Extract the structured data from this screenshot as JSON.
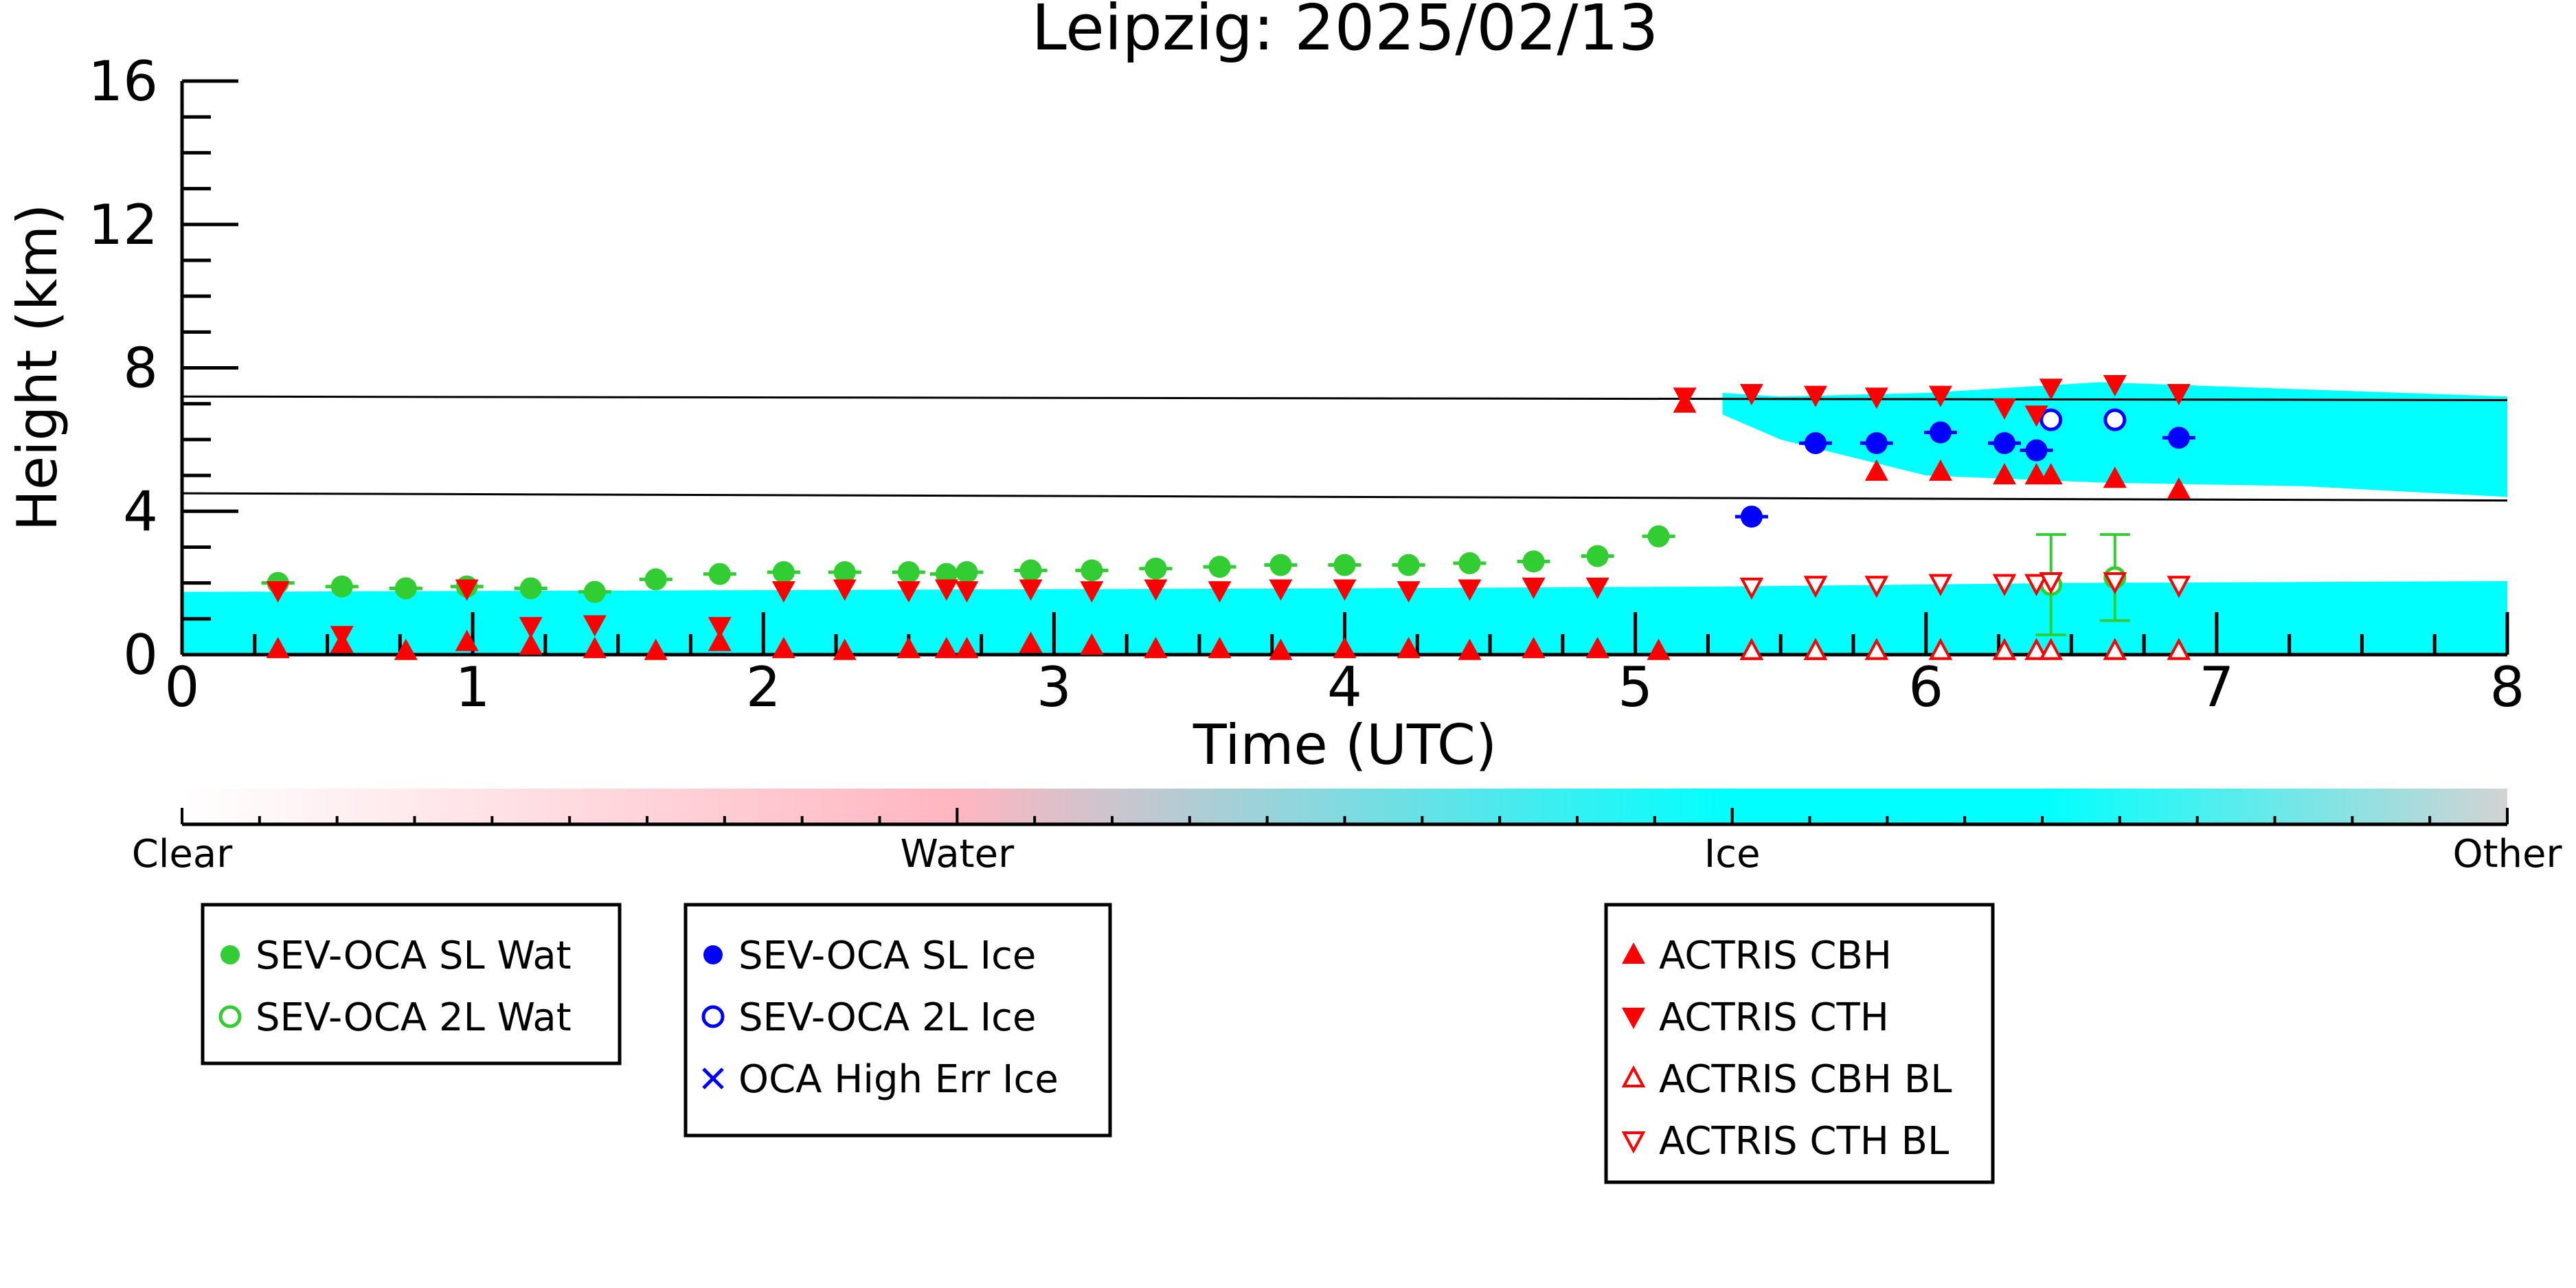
{
  "chart_data": {
    "type": "scatter",
    "title": "Leipzig: 2025/02/13",
    "xlabel": "Time (UTC)",
    "ylabel": "Height (km)",
    "xlim": [
      0,
      8
    ],
    "ylim": [
      0,
      16
    ],
    "xticks": [
      "0",
      "1",
      "2",
      "3",
      "4",
      "5",
      "6",
      "7",
      "8"
    ],
    "yticks": [
      "0",
      "4",
      "8",
      "12",
      "16"
    ],
    "grid": false,
    "colorbar": {
      "labels": [
        "Clear",
        "Water",
        "Ice",
        "Other"
      ],
      "colors": [
        "#ffffff",
        "#ffb6c1",
        "#00ffff",
        "#d3d3d3"
      ]
    },
    "cloudnet_mask": {
      "low_layer": [
        {
          "t": 0.0,
          "base": 0.0,
          "top": 1.75
        },
        {
          "t": 2.0,
          "base": 0.0,
          "top": 1.8
        },
        {
          "t": 4.0,
          "base": 0.0,
          "top": 1.85
        },
        {
          "t": 5.3,
          "base": 0.0,
          "top": 1.9
        },
        {
          "t": 6.5,
          "base": 0.0,
          "top": 2.0
        },
        {
          "t": 8.0,
          "base": 0.0,
          "top": 2.05
        }
      ],
      "high_layer": [
        {
          "t": 5.3,
          "base": 6.7,
          "top": 7.3
        },
        {
          "t": 5.5,
          "base": 6.0,
          "top": 7.2
        },
        {
          "t": 6.0,
          "base": 5.0,
          "top": 7.3
        },
        {
          "t": 6.6,
          "base": 4.8,
          "top": 7.6
        },
        {
          "t": 7.3,
          "base": 4.7,
          "top": 7.4
        },
        {
          "t": 8.0,
          "base": 4.4,
          "top": 7.2
        }
      ]
    },
    "reference_lines": [
      {
        "y_start": 7.2,
        "y_end": 7.1
      },
      {
        "y_start": 4.5,
        "y_end": 4.3
      }
    ],
    "series": [
      {
        "name": "SEV-OCA SL Wat",
        "color": "#32cd32",
        "marker": "filled-circle",
        "x": [
          0.33,
          0.55,
          0.77,
          0.98,
          1.2,
          1.42,
          1.63,
          1.85,
          2.07,
          2.28,
          2.5,
          2.63,
          2.7,
          2.92,
          3.13,
          3.35,
          3.57,
          3.78,
          4.0,
          4.22,
          4.43,
          4.65,
          4.87,
          5.08
        ],
        "y": [
          2.0,
          1.9,
          1.85,
          1.9,
          1.85,
          1.75,
          2.1,
          2.25,
          2.3,
          2.3,
          2.3,
          2.25,
          2.3,
          2.35,
          2.35,
          2.4,
          2.45,
          2.5,
          2.5,
          2.5,
          2.55,
          2.6,
          2.75,
          3.3
        ]
      },
      {
        "name": "SEV-OCA 2L Wat",
        "color": "#32cd32",
        "marker": "open-circle",
        "x": [
          6.43,
          6.65
        ],
        "y": [
          1.95,
          2.15
        ],
        "err": [
          1.4,
          1.2
        ]
      },
      {
        "name": "SEV-OCA SL Ice",
        "color": "#0000ff",
        "marker": "filled-circle",
        "x": [
          5.4,
          5.62,
          5.83,
          6.05,
          6.27,
          6.38,
          6.87
        ],
        "y": [
          3.85,
          5.9,
          5.9,
          6.2,
          5.9,
          5.7,
          6.05
        ]
      },
      {
        "name": "SEV-OCA 2L Ice",
        "color": "#0000ff",
        "marker": "open-circle",
        "x": [
          6.43,
          6.65
        ],
        "y": [
          6.55,
          6.55
        ]
      },
      {
        "name": "OCA High Err Ice",
        "color": "#0000ff",
        "marker": "x",
        "x": [],
        "y": []
      },
      {
        "name": "ACTRIS CBH",
        "color": "#ff0000",
        "marker": "triangle-up",
        "x": [
          0.33,
          0.55,
          0.77,
          0.98,
          1.2,
          1.42,
          1.63,
          1.85,
          2.07,
          2.28,
          2.5,
          2.63,
          2.7,
          2.92,
          3.13,
          3.35,
          3.57,
          3.78,
          4.0,
          4.22,
          4.43,
          4.65,
          4.87,
          5.08,
          5.4,
          5.62,
          5.83,
          6.05,
          6.27,
          6.38,
          6.43,
          6.65,
          6.87,
          5.17
        ],
        "y": [
          0.15,
          0.3,
          0.1,
          0.35,
          0.25,
          0.15,
          0.1,
          0.35,
          0.15,
          0.1,
          0.15,
          0.15,
          0.15,
          0.3,
          0.25,
          0.15,
          0.15,
          0.1,
          0.15,
          0.15,
          0.1,
          0.15,
          0.15,
          0.1,
          0.1,
          0.1,
          5.1,
          5.1,
          5.0,
          5.0,
          5.0,
          4.9,
          4.6,
          7.0
        ]
      },
      {
        "name": "ACTRIS CTH",
        "color": "#ff0000",
        "marker": "triangle-down",
        "x": [
          0.33,
          0.55,
          0.98,
          1.2,
          1.42,
          1.85,
          2.07,
          2.28,
          2.5,
          2.63,
          2.7,
          2.92,
          3.13,
          3.35,
          3.57,
          3.78,
          4.0,
          4.22,
          4.43,
          4.65,
          4.87,
          5.17,
          5.4,
          5.62,
          5.83,
          6.05,
          6.27,
          6.38,
          6.43,
          6.65,
          6.87
        ],
        "y": [
          1.8,
          0.55,
          1.85,
          0.8,
          0.85,
          0.8,
          1.8,
          1.85,
          1.8,
          1.85,
          1.8,
          1.85,
          1.8,
          1.85,
          1.8,
          1.85,
          1.85,
          1.8,
          1.85,
          1.9,
          1.9,
          7.2,
          7.3,
          7.25,
          7.2,
          7.25,
          6.9,
          6.7,
          7.45,
          7.55,
          7.3
        ]
      },
      {
        "name": "ACTRIS CBH BL",
        "color": "#ff0000",
        "marker": "open-triangle-up",
        "x": [
          5.4,
          5.62,
          5.83,
          6.05,
          6.27,
          6.38,
          6.43,
          6.65,
          6.87
        ],
        "y": [
          0.1,
          0.1,
          0.1,
          0.1,
          0.1,
          0.1,
          0.1,
          0.1,
          0.1
        ]
      },
      {
        "name": "ACTRIS CTH BL",
        "color": "#ff0000",
        "marker": "open-triangle-down",
        "x": [
          5.4,
          5.62,
          5.83,
          6.05,
          6.27,
          6.38,
          6.43,
          6.65,
          6.87
        ],
        "y": [
          1.9,
          1.95,
          1.95,
          2.0,
          2.0,
          2.0,
          2.05,
          2.05,
          1.95
        ]
      }
    ]
  },
  "legend_groups": [
    {
      "entries": [
        "SEV-OCA SL Wat",
        "SEV-OCA 2L Wat"
      ]
    },
    {
      "entries": [
        "SEV-OCA SL Ice",
        "SEV-OCA 2L Ice",
        "OCA High Err Ice"
      ]
    },
    {
      "entries": [
        "ACTRIS CBH",
        "ACTRIS CTH",
        "ACTRIS CBH BL",
        "ACTRIS CTH BL"
      ]
    }
  ]
}
